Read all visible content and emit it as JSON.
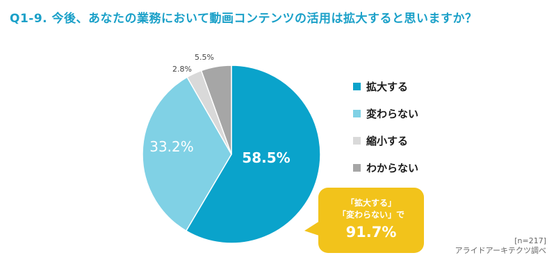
{
  "title": "Q1-9. 今後、あなたの業務において動画コンテンツの活用は拡大すると思いますか？",
  "chart_data": {
    "type": "pie",
    "start": "top, clockwise",
    "slices": [
      {
        "label": "拡大する",
        "value": 58.5,
        "value_label": "58.5%",
        "color": "#0aa3cb",
        "label_color": "#ffffff"
      },
      {
        "label": "変わらない",
        "value": 33.2,
        "value_label": "33.2%",
        "color": "#80d1e5",
        "label_color": "#ffffff"
      },
      {
        "label": "縮小する",
        "value": 2.8,
        "value_label": "2.8%",
        "color": "#d9d9d9",
        "label_color": "#444444"
      },
      {
        "label": "わからない",
        "value": 5.5,
        "value_label": "5.5%",
        "color": "#a6a6a6",
        "label_color": "#444444"
      }
    ]
  },
  "callout": {
    "line1": "「拡大する」",
    "line2": "「変わらない」で",
    "value": "91.7%",
    "color": "#f2c31b"
  },
  "note": {
    "n": "[n=217]",
    "source": "アライドアーキテクツ調べ"
  }
}
